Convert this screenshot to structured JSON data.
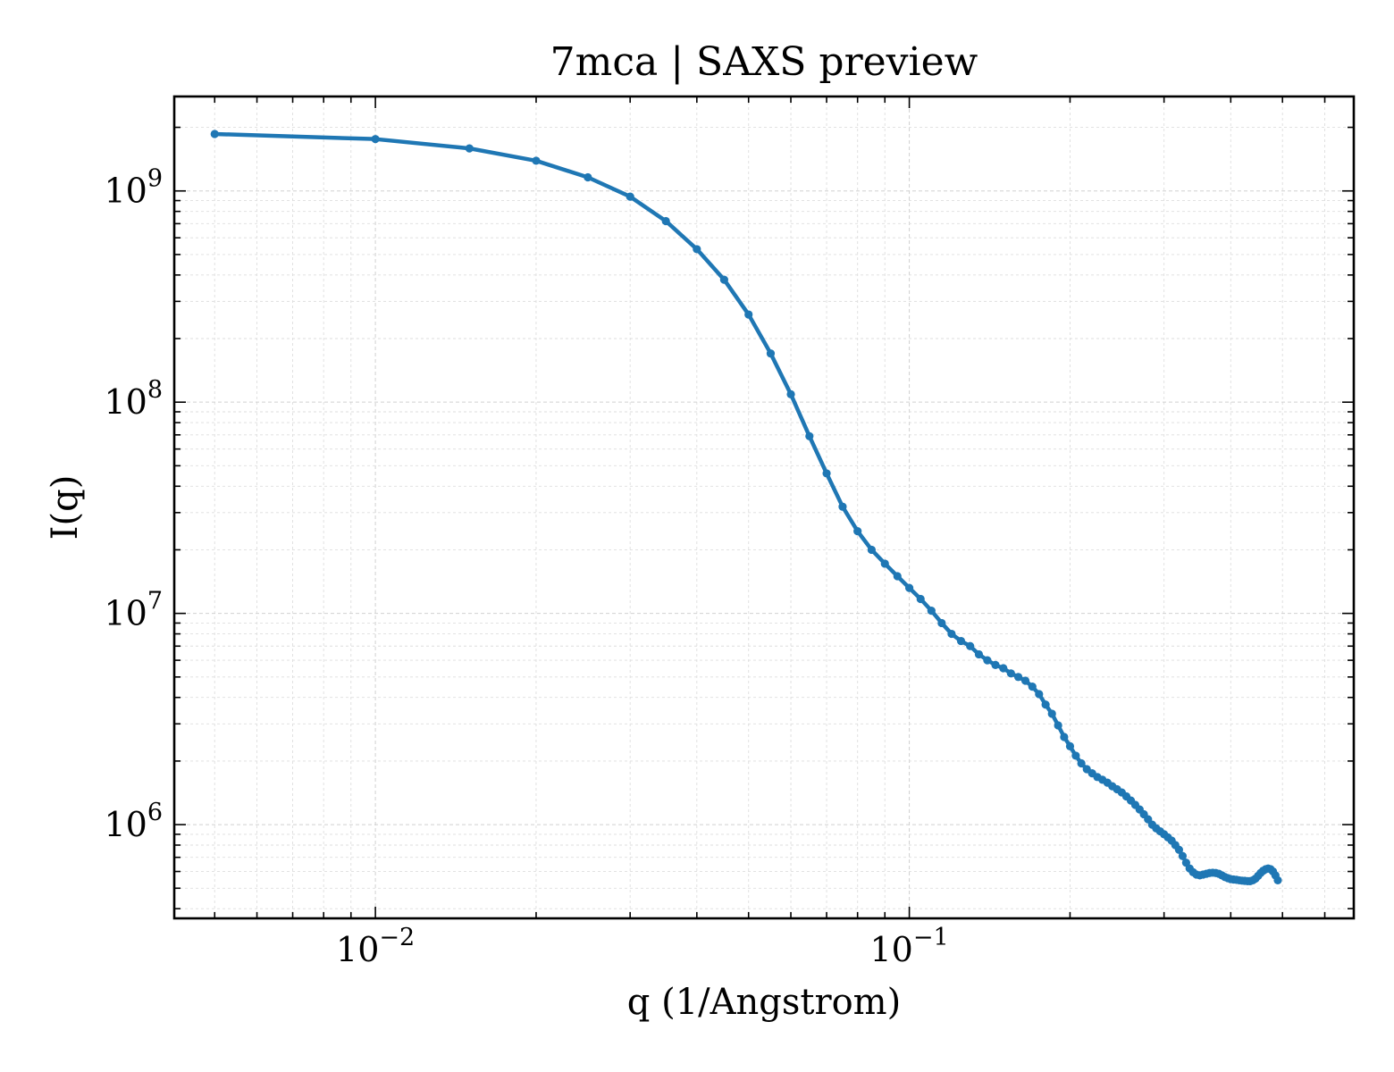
{
  "chart_data": {
    "type": "line",
    "title": "7mca | SAXS preview",
    "xlabel": "q (1/Angstrom)",
    "ylabel": "I(q)",
    "xscale": "log",
    "yscale": "log",
    "xlim": [
      0.0042,
      0.68
    ],
    "ylim": [
      360000,
      2800000000
    ],
    "grid": true,
    "x_tick_labels": [
      {
        "base": "10",
        "exp": "−2",
        "value": 0.01
      },
      {
        "base": "10",
        "exp": "−1",
        "value": 0.1
      }
    ],
    "y_tick_labels": [
      {
        "base": "10",
        "exp": "6",
        "value": 1000000
      },
      {
        "base": "10",
        "exp": "7",
        "value": 10000000
      },
      {
        "base": "10",
        "exp": "8",
        "value": 100000000
      },
      {
        "base": "10",
        "exp": "9",
        "value": 1000000000
      }
    ],
    "series": [
      {
        "color": "#1f77b4",
        "points": [
          [
            0.005,
            1860000000.0
          ],
          [
            0.01,
            1760000000.0
          ],
          [
            0.015,
            1590000000.0
          ],
          [
            0.02,
            1390000000.0
          ],
          [
            0.025,
            1160000000.0
          ],
          [
            0.03,
            940000000.0
          ],
          [
            0.035,
            720000000.0
          ],
          [
            0.04,
            530000000.0
          ],
          [
            0.045,
            380000000.0
          ],
          [
            0.05,
            260000000.0
          ],
          [
            0.055,
            170000000.0
          ],
          [
            0.06,
            109000000.0
          ],
          [
            0.065,
            69000000.0
          ],
          [
            0.07,
            46000000.0
          ],
          [
            0.075,
            32000000.0
          ],
          [
            0.08,
            24500000.0
          ],
          [
            0.085,
            20000000.0
          ],
          [
            0.09,
            17200000.0
          ],
          [
            0.095,
            15000000.0
          ],
          [
            0.1,
            13200000.0
          ],
          [
            0.105,
            11700000.0
          ],
          [
            0.11,
            10300000.0
          ],
          [
            0.115,
            9000000.0
          ],
          [
            0.12,
            8000000.0
          ],
          [
            0.125,
            7400000.0
          ],
          [
            0.13,
            7000000.0
          ],
          [
            0.135,
            6400000.0
          ],
          [
            0.14,
            6000000.0
          ],
          [
            0.145,
            5700000.0
          ],
          [
            0.15,
            5500000.0
          ],
          [
            0.155,
            5200000.0
          ],
          [
            0.16,
            5000000.0
          ],
          [
            0.165,
            4800000.0
          ],
          [
            0.17,
            4500000.0
          ],
          [
            0.175,
            4150000.0
          ],
          [
            0.18,
            3700000.0
          ],
          [
            0.185,
            3350000.0
          ],
          [
            0.19,
            2950000.0
          ],
          [
            0.195,
            2600000.0
          ],
          [
            0.2,
            2350000.0
          ],
          [
            0.205,
            2120000.0
          ],
          [
            0.21,
            1950000.0
          ],
          [
            0.215,
            1830000.0
          ],
          [
            0.22,
            1750000.0
          ],
          [
            0.225,
            1680000.0
          ],
          [
            0.23,
            1630000.0
          ],
          [
            0.235,
            1580000.0
          ],
          [
            0.24,
            1520000.0
          ],
          [
            0.245,
            1470000.0
          ],
          [
            0.25,
            1420000.0
          ],
          [
            0.255,
            1360000.0
          ],
          [
            0.26,
            1300000.0
          ],
          [
            0.265,
            1240000.0
          ],
          [
            0.27,
            1180000.0
          ],
          [
            0.275,
            1120000.0
          ],
          [
            0.28,
            1060000.0
          ],
          [
            0.285,
            1000000.0
          ],
          [
            0.29,
            960000.0
          ],
          [
            0.295,
            930000.0
          ],
          [
            0.3,
            900000.0
          ],
          [
            0.305,
            870000.0
          ],
          [
            0.31,
            840000.0
          ],
          [
            0.315,
            800000.0
          ],
          [
            0.32,
            760000.0
          ],
          [
            0.325,
            710000.0
          ],
          [
            0.33,
            660000.0
          ],
          [
            0.335,
            620000.0
          ],
          [
            0.34,
            595000.0
          ],
          [
            0.345,
            580000.0
          ],
          [
            0.35,
            575000.0
          ],
          [
            0.355,
            580000.0
          ],
          [
            0.36,
            585000.0
          ],
          [
            0.365,
            590000.0
          ],
          [
            0.37,
            592000.0
          ],
          [
            0.375,
            590000.0
          ],
          [
            0.38,
            585000.0
          ],
          [
            0.385,
            575000.0
          ],
          [
            0.39,
            565000.0
          ],
          [
            0.395,
            558000.0
          ],
          [
            0.4,
            552000.0
          ],
          [
            0.405,
            550000.0
          ],
          [
            0.41,
            548000.0
          ],
          [
            0.415,
            545000.0
          ],
          [
            0.42,
            543000.0
          ],
          [
            0.425,
            542000.0
          ],
          [
            0.43,
            540000.0
          ],
          [
            0.435,
            540000.0
          ],
          [
            0.44,
            545000.0
          ],
          [
            0.445,
            555000.0
          ],
          [
            0.45,
            572000.0
          ],
          [
            0.455,
            590000.0
          ],
          [
            0.46,
            605000.0
          ],
          [
            0.465,
            615000.0
          ],
          [
            0.47,
            620000.0
          ],
          [
            0.475,
            615000.0
          ],
          [
            0.48,
            600000.0
          ],
          [
            0.485,
            575000.0
          ],
          [
            0.49,
            545000.0
          ]
        ]
      }
    ]
  }
}
